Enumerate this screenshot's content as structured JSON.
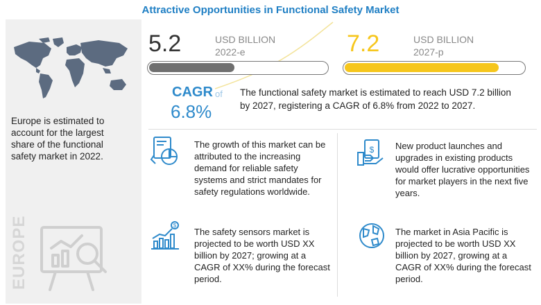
{
  "title": "Attractive Opportunities in Functional Safety Market",
  "stats": {
    "value_2022": "5.2",
    "unit_2022": "USD BILLION",
    "year_2022": "2022-e",
    "progress_2022": 0.48,
    "value_2027": "7.2",
    "unit_2027": "USD BILLION",
    "year_2027": "2027-p",
    "progress_2027": 0.86
  },
  "cagr": {
    "label": "CAGR",
    "of": "of",
    "value": "6.8%",
    "description": "The functional safety market is estimated to reach USD 7.2 billion by 2027, registering a CAGR of 6.8% from 2022 to 2027."
  },
  "left": {
    "region_text": "Europe is estimated to account for the largest share of the functional safety market in 2022.",
    "vertical_label": "EUROPE"
  },
  "features": [
    {
      "icon": "report-chart-icon",
      "text": "The growth of this market can be attributed to the increasing demand for reliable safety systems and strict mandates for safety regulations worldwide."
    },
    {
      "icon": "money-hand-icon",
      "text": "New product launches and upgrades in existing products would offer lucrative opportunities for market players in the next five years."
    },
    {
      "icon": "growth-bar-icon",
      "text": "The safety sensors market is projected to be worth USD XX billion by 2027; growing at a CAGR of XX% during the forecast period."
    },
    {
      "icon": "globe-icon",
      "text": "The market in Asia Pacific is projected to be worth USD XX billion by 2027, growing at a CAGR of XX% during the forecast period."
    }
  ],
  "colors": {
    "title": "#1f7fc4",
    "bar_2022": "#6f6f6f",
    "bar_2027": "#f6c61c",
    "num_2027": "#f6c61c",
    "icon_blue": "#2e8acb",
    "map": "#5c6b80"
  }
}
